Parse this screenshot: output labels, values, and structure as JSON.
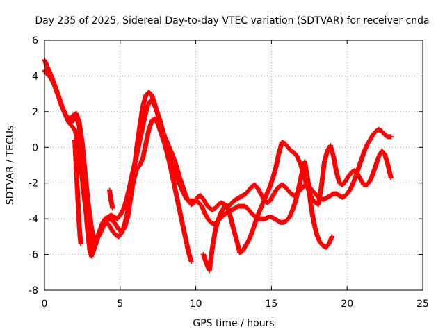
{
  "chart_data": {
    "type": "scatter",
    "title": "Day 235 of 2025, Sidereal Day-to-day VTEC variation (SDTVAR) for receiver cnda",
    "xlabel": "GPS time / hours",
    "ylabel": "SDTVAR / TECUs",
    "xlim": [
      0,
      25
    ],
    "ylim": [
      -8,
      6
    ],
    "x_ticks": [
      "0",
      "5",
      "10",
      "15",
      "20",
      "25"
    ],
    "y_ticks": [
      "-8",
      "-6",
      "-4",
      "-2",
      "0",
      "2",
      "4",
      "6"
    ],
    "grid": true,
    "legend": "none",
    "marker": "plus",
    "color": "#ff0000",
    "series": [
      {
        "x": [
          0.0,
          0.15,
          0.3,
          0.5,
          0.7,
          0.9,
          1.1,
          1.3,
          1.5,
          1.7,
          1.9,
          2.1,
          2.3,
          2.5,
          2.6,
          2.7,
          2.8,
          2.9,
          3.0,
          3.1,
          3.2,
          3.35,
          3.5,
          3.7,
          3.9,
          4.1,
          4.3,
          4.5,
          4.7,
          4.9,
          5.1,
          5.3,
          5.5,
          5.7,
          5.9,
          6.1,
          6.3,
          6.5,
          6.7,
          6.9,
          7.1,
          7.3,
          7.5,
          7.7,
          7.9,
          8.1,
          8.3,
          8.5,
          8.7,
          8.9,
          9.1,
          9.3,
          9.5,
          9.7,
          9.9,
          10.1,
          10.3,
          10.5,
          10.7,
          10.9,
          11.1,
          11.3,
          11.5,
          11.7,
          11.9,
          12.1,
          12.3,
          12.5,
          12.7,
          12.9,
          13.1,
          13.3,
          13.5,
          13.7,
          13.9,
          14.1,
          14.3,
          14.5,
          14.7,
          14.9,
          15.1,
          15.3,
          15.5,
          15.7,
          15.9,
          16.1,
          16.3,
          16.5,
          16.7,
          16.9,
          17.1,
          17.3,
          17.5,
          17.7,
          17.9,
          18.1,
          18.3,
          18.5,
          18.7,
          18.9,
          19.1,
          19.3,
          19.5,
          19.7,
          19.9,
          20.1,
          20.3,
          20.5,
          20.7,
          20.9,
          21.1,
          21.3,
          21.5,
          21.7,
          21.9,
          22.1,
          22.3,
          22.5,
          22.7,
          22.9
        ],
        "y": [
          4.9,
          4.6,
          4.2,
          3.8,
          3.4,
          2.9,
          2.4,
          2.0,
          1.6,
          1.4,
          1.5,
          1.7,
          1.2,
          -0.2,
          -1.6,
          -3.0,
          -4.2,
          -5.1,
          -5.8,
          -6.1,
          -5.9,
          -5.5,
          -5.1,
          -4.8,
          -4.4,
          -4.1,
          -4.0,
          -4.1,
          -4.3,
          -4.6,
          -4.7,
          -4.5,
          -3.9,
          -2.8,
          -1.4,
          0.0,
          1.2,
          2.3,
          2.9,
          3.1,
          2.9,
          2.4,
          1.8,
          1.2,
          0.7,
          0.3,
          -0.1,
          -0.5,
          -1.0,
          -1.6,
          -2.1,
          -2.6,
          -3.0,
          -3.2,
          -3.1,
          -2.8,
          -2.7,
          -2.9,
          -3.2,
          -3.4,
          -3.5,
          -3.4,
          -3.2,
          -3.1,
          -3.2,
          -3.3,
          -3.2,
          -3.0,
          -2.9,
          -2.8,
          -2.7,
          -2.6,
          -2.4,
          -2.2,
          -2.1,
          -2.3,
          -2.6,
          -2.9,
          -3.1,
          -3.0,
          -2.7,
          -2.4,
          -2.2,
          -2.1,
          -2.2,
          -2.4,
          -2.6,
          -2.7,
          -2.6,
          -2.4,
          -2.2,
          -2.1,
          -2.2,
          -2.4,
          -2.6,
          -2.8,
          -2.9,
          -2.9,
          -2.8,
          -2.7,
          -2.6,
          -2.6,
          -2.7,
          -2.8,
          -2.7,
          -2.5,
          -2.2,
          -1.8,
          -1.3,
          -0.8,
          -0.3,
          0.1,
          0.4,
          0.7,
          0.9,
          1.0,
          0.9,
          0.7,
          0.6,
          0.6
        ]
      },
      {
        "x": [
          0.0,
          0.2,
          0.4,
          0.6,
          0.8,
          1.0,
          1.2,
          1.4,
          1.6,
          1.8,
          2.0,
          2.2,
          2.4,
          2.6,
          2.8,
          3.0,
          3.2,
          3.4,
          3.6,
          3.8,
          4.0,
          4.2,
          4.4,
          4.6,
          4.8,
          5.0,
          5.2,
          5.4,
          5.6,
          5.8,
          6.0,
          6.2,
          6.4,
          6.6,
          6.8,
          7.0,
          7.2,
          7.4,
          7.6,
          7.8,
          8.0,
          8.2,
          8.4,
          8.6,
          8.8,
          9.0,
          9.2,
          9.4,
          9.6,
          9.8,
          10.0,
          10.2,
          10.4,
          10.6,
          10.8,
          11.0,
          11.2,
          11.4,
          11.6,
          11.8,
          12.0,
          12.2,
          12.4,
          12.6,
          12.8,
          13.0,
          13.2,
          13.4,
          13.6,
          13.8,
          14.0,
          14.2,
          14.4,
          14.6,
          14.8,
          15.0,
          15.2,
          15.4,
          15.6,
          15.8,
          16.0,
          16.2,
          16.4,
          16.6,
          16.8,
          17.0,
          17.2,
          17.4,
          17.6,
          17.8,
          18.0,
          18.2,
          18.4,
          18.6,
          18.8,
          19.0
        ],
        "y": [
          4.3,
          4.1,
          3.9,
          3.6,
          3.2,
          2.7,
          2.2,
          1.8,
          1.4,
          1.2,
          1.0,
          0.4,
          -1.0,
          -2.6,
          -4.0,
          -5.0,
          -5.6,
          -5.4,
          -4.8,
          -4.3,
          -4.0,
          -3.9,
          -3.8,
          -3.9,
          -4.0,
          -3.8,
          -3.5,
          -3.0,
          -2.3,
          -1.5,
          -0.8,
          0.0,
          0.8,
          1.6,
          2.3,
          2.6,
          2.5,
          2.1,
          1.6,
          1.0,
          0.4,
          -0.2,
          -0.8,
          -1.3,
          -1.8,
          -2.2,
          -2.6,
          -2.9,
          -3.0,
          -3.0,
          -3.0,
          -3.1,
          -3.3,
          -3.7,
          -4.0,
          -4.2,
          -4.3,
          -4.2,
          -4.0,
          -3.8,
          -3.7,
          -3.6,
          -3.5,
          -3.4,
          -3.3,
          -3.3,
          -3.3,
          -3.4,
          -3.6,
          -3.8,
          -3.9,
          -4.0,
          -4.0,
          -4.0,
          -3.9,
          -3.9,
          -4.0,
          -4.1,
          -4.2,
          -4.2,
          -4.1,
          -3.9,
          -3.5,
          -3.0,
          -2.3,
          -1.5,
          -0.8,
          -1.8,
          -3.2,
          -4.2,
          -4.9,
          -5.3,
          -5.5,
          -5.6,
          -5.4,
          -5.0
        ]
      },
      {
        "x": [
          0.1,
          0.3,
          0.5,
          0.7,
          0.9,
          1.1,
          1.3,
          1.5,
          1.7,
          1.9,
          2.1,
          2.3,
          2.5,
          2.7,
          2.9,
          3.1,
          3.3,
          3.5,
          3.7,
          3.9,
          4.1,
          4.3,
          4.5,
          4.7,
          4.9,
          5.1,
          5.3,
          5.5,
          5.7,
          5.9,
          6.1,
          6.3,
          6.5,
          6.7,
          6.9,
          7.1,
          7.3,
          7.5,
          7.7,
          7.9,
          8.1,
          8.3,
          8.5,
          8.7,
          8.9,
          9.1,
          9.3,
          9.5,
          9.7
        ],
        "y": [
          4.7,
          4.3,
          3.9,
          3.4,
          2.9,
          2.4,
          2.0,
          1.7,
          1.6,
          1.8,
          1.9,
          1.4,
          0.2,
          -1.6,
          -3.2,
          -4.5,
          -5.2,
          -5.0,
          -4.6,
          -4.3,
          -4.2,
          -4.4,
          -4.7,
          -4.9,
          -5.0,
          -4.8,
          -4.3,
          -3.6,
          -2.7,
          -1.8,
          -1.2,
          -1.0,
          -0.6,
          0.2,
          1.0,
          1.5,
          1.6,
          1.3,
          0.8,
          0.3,
          -0.3,
          -1.0,
          -1.8,
          -2.6,
          -3.4,
          -4.2,
          -5.0,
          -5.8,
          -6.4
        ]
      },
      {
        "x": [
          10.5,
          10.7,
          10.9,
          11.1,
          11.3,
          11.5,
          11.7,
          11.9,
          12.1,
          12.3,
          12.5,
          12.7,
          12.9,
          13.1,
          13.3,
          13.5,
          13.7,
          13.9,
          14.1,
          14.3,
          14.5,
          14.7,
          14.9,
          15.1,
          15.3,
          15.5,
          15.7,
          15.9,
          16.1,
          16.3,
          16.5,
          16.7,
          16.9,
          17.1,
          17.3,
          17.5,
          17.7,
          17.9,
          18.1,
          18.3,
          18.5,
          18.7,
          18.9,
          19.1,
          19.3,
          19.5,
          19.7,
          19.9,
          20.1,
          20.3,
          20.5,
          20.7,
          20.9,
          21.1,
          21.3,
          21.5,
          21.7,
          21.9,
          22.1,
          22.3,
          22.5,
          22.7,
          22.9
        ],
        "y": [
          -6.0,
          -6.5,
          -6.9,
          -5.6,
          -4.6,
          -4.0,
          -3.6,
          -3.3,
          -3.4,
          -3.9,
          -4.6,
          -5.2,
          -5.9,
          -5.8,
          -5.5,
          -5.2,
          -4.8,
          -4.3,
          -3.8,
          -3.4,
          -3.0,
          -2.6,
          -2.2,
          -1.7,
          -1.1,
          -0.3,
          0.3,
          0.2,
          0.0,
          -0.2,
          -0.3,
          -0.5,
          -0.9,
          -1.4,
          -2.0,
          -2.5,
          -2.9,
          -3.1,
          -3.2,
          -2.2,
          -0.8,
          -0.2,
          0.1,
          -0.5,
          -1.4,
          -2.0,
          -2.1,
          -1.9,
          -1.6,
          -1.4,
          -1.3,
          -1.5,
          -1.8,
          -2.1,
          -2.1,
          -1.9,
          -1.5,
          -1.0,
          -0.5,
          -0.2,
          -0.4,
          -1.0,
          -1.7
        ]
      },
      {
        "x": [
          2.0,
          2.05,
          2.1,
          2.15,
          2.2,
          2.25,
          2.3,
          2.35,
          2.4
        ],
        "y": [
          0.4,
          -0.4,
          -1.2,
          -2.0,
          -2.8,
          -3.6,
          -4.4,
          -5.0,
          -5.4
        ]
      },
      {
        "x": [
          4.3,
          4.35,
          4.4,
          4.45,
          4.5
        ],
        "y": [
          -2.4,
          -2.7,
          -3.0,
          -3.2,
          -3.4
        ]
      }
    ]
  }
}
